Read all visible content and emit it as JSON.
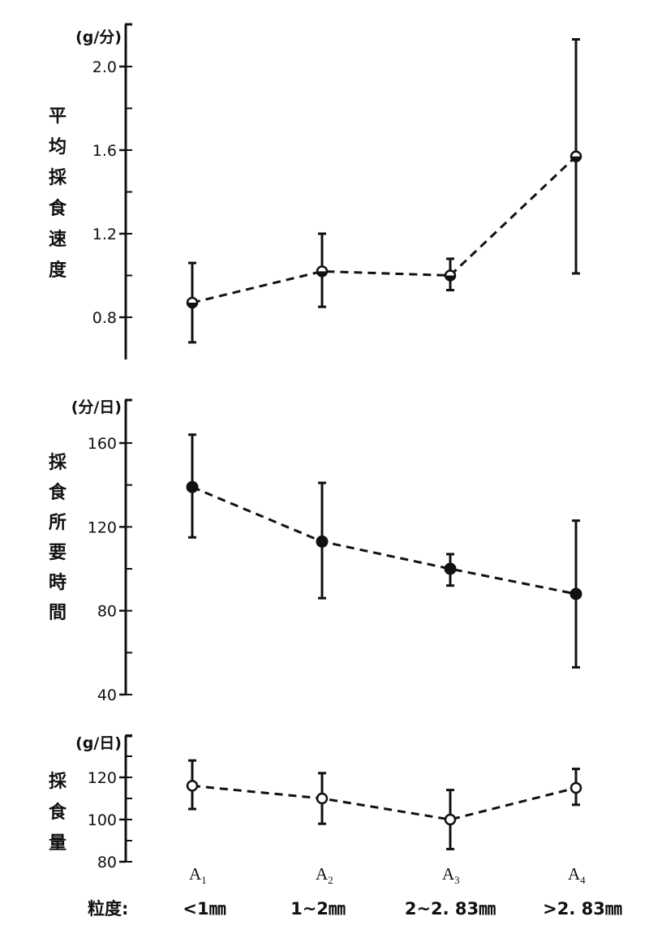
{
  "chart_data": [
    {
      "type": "line",
      "unit": "(g/分)",
      "ylabel": "平均採食速度",
      "ylim": [
        0.7,
        2.2
      ],
      "yticks": [
        "2.0",
        "1.6",
        "1.2",
        "0.8"
      ],
      "categories": [
        "A1",
        "A2",
        "A3",
        "A4"
      ],
      "marker": "half-filled circle",
      "values": [
        0.87,
        1.02,
        1.0,
        1.57
      ],
      "error_low": [
        0.68,
        0.85,
        0.93,
        1.01
      ],
      "error_high": [
        1.06,
        1.2,
        1.08,
        2.13
      ]
    },
    {
      "type": "line",
      "unit": "(分/日)",
      "ylabel": "採食所要時間",
      "ylim": [
        40,
        175
      ],
      "yticks": [
        "160",
        "120",
        "80",
        "40"
      ],
      "categories": [
        "A1",
        "A2",
        "A3",
        "A4"
      ],
      "marker": "filled circle",
      "values": [
        139,
        113,
        100,
        88
      ],
      "error_low": [
        115,
        86,
        92,
        53
      ],
      "error_high": [
        164,
        141,
        107,
        123
      ]
    },
    {
      "type": "line",
      "unit": "(g/日)",
      "ylabel": "採食量",
      "ylim": [
        80,
        140
      ],
      "yticks": [
        "120",
        "100",
        "80"
      ],
      "categories": [
        "A1",
        "A2",
        "A3",
        "A4"
      ],
      "marker": "open circle",
      "values": [
        116,
        110,
        100,
        115
      ],
      "error_low": [
        105,
        98,
        86,
        107
      ],
      "error_high": [
        128,
        122,
        114,
        124
      ]
    }
  ],
  "x_axis": {
    "categories": [
      {
        "main": "A",
        "sub": "1"
      },
      {
        "main": "A",
        "sub": "2"
      },
      {
        "main": "A",
        "sub": "3"
      },
      {
        "main": "A",
        "sub": "4"
      }
    ],
    "prefix": "粒度:",
    "sizes": [
      "<1㎜",
      "1~2㎜",
      "2~2. 83㎜",
      ">2. 83㎜"
    ]
  },
  "colors": {
    "ink": "#111111",
    "background": "#ffffff"
  }
}
